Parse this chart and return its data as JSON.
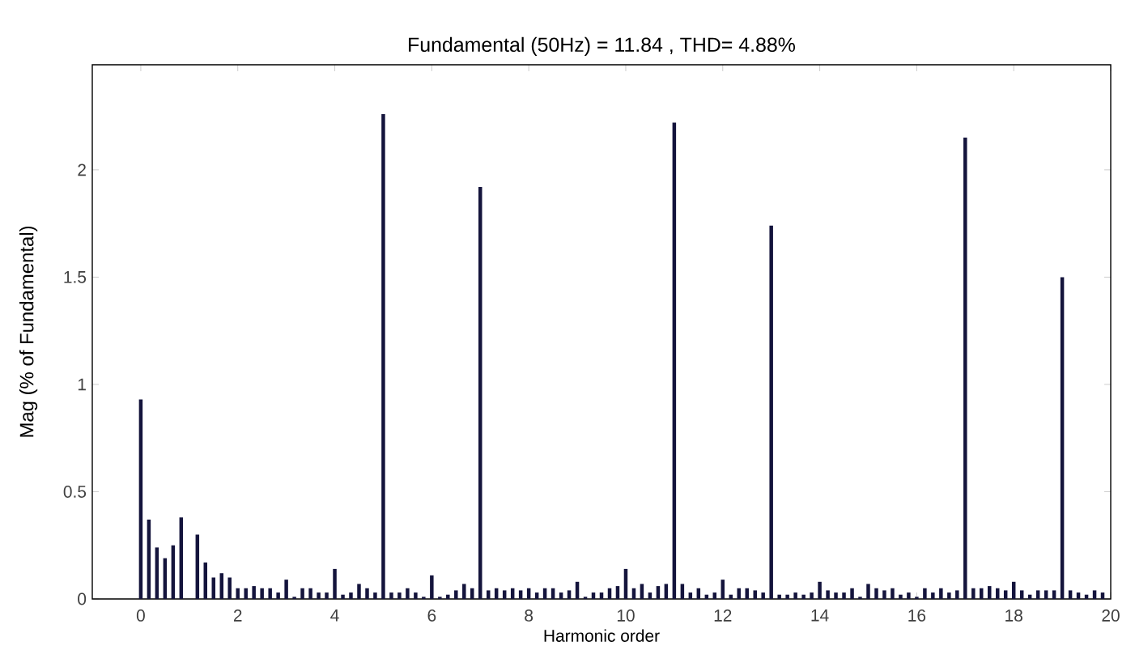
{
  "chart_data": {
    "type": "bar",
    "title": "Fundamental (50Hz) = 11.84 , THD= 4.88%",
    "xlabel": "Harmonic order",
    "ylabel": "Mag (% of Fundamental)",
    "x": [
      0,
      0.167,
      0.333,
      0.5,
      0.667,
      0.833,
      1,
      1.167,
      1.333,
      1.5,
      1.667,
      1.833,
      2,
      2.167,
      2.333,
      2.5,
      2.667,
      2.833,
      3,
      3.167,
      3.333,
      3.5,
      3.667,
      3.833,
      4,
      4.167,
      4.333,
      4.5,
      4.667,
      4.833,
      5,
      5.167,
      5.333,
      5.5,
      5.667,
      5.833,
      6,
      6.167,
      6.333,
      6.5,
      6.667,
      6.833,
      7,
      7.167,
      7.333,
      7.5,
      7.667,
      7.833,
      8,
      8.167,
      8.333,
      8.5,
      8.667,
      8.833,
      9,
      9.167,
      9.333,
      9.5,
      9.667,
      9.833,
      10,
      10.167,
      10.333,
      10.5,
      10.667,
      10.833,
      11,
      11.167,
      11.333,
      11.5,
      11.667,
      11.833,
      12,
      12.167,
      12.333,
      12.5,
      12.667,
      12.833,
      13,
      13.167,
      13.333,
      13.5,
      13.667,
      13.833,
      14,
      14.167,
      14.333,
      14.5,
      14.667,
      14.833,
      15,
      15.167,
      15.333,
      15.5,
      15.667,
      15.833,
      16,
      16.167,
      16.333,
      16.5,
      16.667,
      16.833,
      17,
      17.167,
      17.333,
      17.5,
      17.667,
      17.833,
      18,
      18.167,
      18.333,
      18.5,
      18.667,
      18.833,
      19,
      19.167,
      19.333,
      19.5,
      19.667,
      19.833
    ],
    "values": [
      0.93,
      0.37,
      0.24,
      0.19,
      0.25,
      0.38,
      null,
      0.3,
      0.17,
      0.1,
      0.12,
      0.1,
      0.05,
      0.05,
      0.06,
      0.05,
      0.05,
      0.03,
      0.09,
      0.01,
      0.05,
      0.05,
      0.03,
      0.03,
      0.14,
      0.02,
      0.03,
      0.07,
      0.05,
      0.03,
      2.26,
      0.03,
      0.03,
      0.05,
      0.03,
      0.01,
      0.11,
      0.01,
      0.02,
      0.04,
      0.07,
      0.05,
      1.92,
      0.04,
      0.05,
      0.04,
      0.05,
      0.04,
      0.05,
      0.03,
      0.05,
      0.05,
      0.03,
      0.04,
      0.08,
      0.01,
      0.03,
      0.03,
      0.05,
      0.06,
      0.14,
      0.05,
      0.07,
      0.03,
      0.06,
      0.07,
      2.22,
      0.07,
      0.03,
      0.05,
      0.02,
      0.03,
      0.09,
      0.02,
      0.05,
      0.05,
      0.04,
      0.03,
      1.74,
      0.02,
      0.02,
      0.03,
      0.02,
      0.03,
      0.08,
      0.04,
      0.03,
      0.03,
      0.05,
      0.01,
      0.07,
      0.05,
      0.04,
      0.05,
      0.02,
      0.03,
      0.01,
      0.05,
      0.03,
      0.05,
      0.03,
      0.04,
      2.15,
      0.05,
      0.05,
      0.06,
      0.05,
      0.04,
      0.08,
      0.04,
      0.02,
      0.04,
      0.04,
      0.04,
      1.5,
      0.04,
      0.03,
      0.02,
      0.04,
      0.03
    ],
    "color": "#14143c",
    "xlim": [
      -1,
      20
    ],
    "ylim": [
      0,
      2.49
    ],
    "xticks": [
      0,
      2,
      4,
      6,
      8,
      10,
      12,
      14,
      16,
      18,
      20
    ],
    "yticks": [
      0,
      0.5,
      1,
      1.5,
      2
    ]
  }
}
